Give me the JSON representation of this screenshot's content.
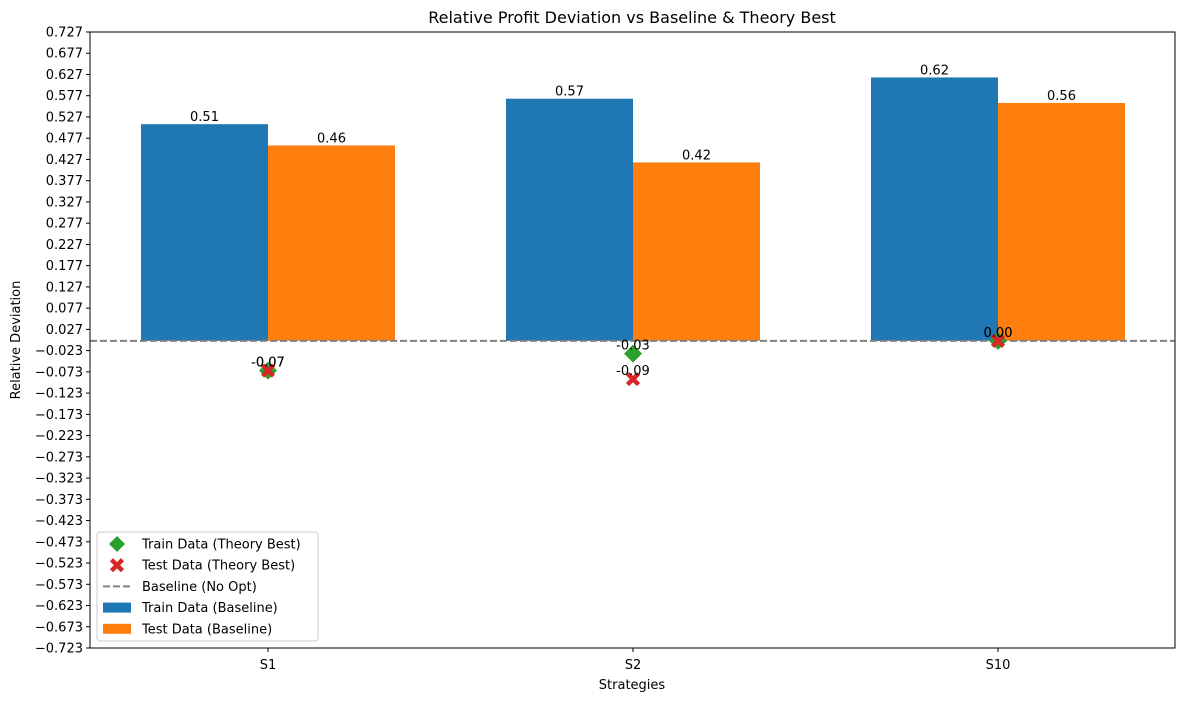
{
  "chart_data": {
    "type": "bar",
    "title": "Relative Profit Deviation vs Baseline & Theory Best",
    "xlabel": "Strategies",
    "ylabel": "Relative Deviation",
    "categories": [
      "S1",
      "S2",
      "S10"
    ],
    "ylim": [
      -0.723,
      0.727
    ],
    "yticks": [
      "0.727",
      "0.677",
      "0.627",
      "0.577",
      "0.527",
      "0.477",
      "0.427",
      "0.377",
      "0.327",
      "0.277",
      "0.227",
      "0.177",
      "0.127",
      "0.077",
      "0.027",
      "−0.023",
      "−0.073",
      "−0.123",
      "−0.173",
      "−0.223",
      "−0.273",
      "−0.323",
      "−0.373",
      "−0.423",
      "−0.473",
      "−0.523",
      "−0.573",
      "−0.623",
      "−0.673",
      "−0.723"
    ],
    "ytick_values": [
      0.727,
      0.677,
      0.627,
      0.577,
      0.527,
      0.477,
      0.427,
      0.377,
      0.327,
      0.277,
      0.227,
      0.177,
      0.127,
      0.077,
      0.027,
      -0.023,
      -0.073,
      -0.123,
      -0.173,
      -0.223,
      -0.273,
      -0.323,
      -0.373,
      -0.423,
      -0.473,
      -0.523,
      -0.573,
      -0.623,
      -0.673,
      -0.723
    ],
    "bar_series": [
      {
        "name": "Train Data (Baseline)",
        "color": "#1f77b4",
        "values": [
          0.51,
          0.57,
          0.62
        ],
        "labels": [
          "0.51",
          "0.57",
          "0.62"
        ]
      },
      {
        "name": "Test Data (Baseline)",
        "color": "#ff7f0e",
        "values": [
          0.46,
          0.42,
          0.56
        ],
        "labels": [
          "0.46",
          "0.42",
          "0.56"
        ]
      }
    ],
    "marker_series": [
      {
        "name": "Train Data (Theory Best)",
        "color": "#2ca02c",
        "marker": "diamond",
        "values": [
          -0.07,
          -0.03,
          0.0
        ],
        "labels": [
          "-0.07",
          "-0.03",
          "0.00"
        ]
      },
      {
        "name": "Test Data (Theory Best)",
        "color": "#d62728",
        "marker": "x",
        "values": [
          -0.07,
          -0.09,
          0.0
        ],
        "labels": [
          "-0.07",
          "-0.09",
          "0.00"
        ]
      }
    ],
    "baseline": {
      "name": "Baseline (No Opt)",
      "value": 0.0,
      "color": "#808080",
      "style": "dashed"
    },
    "legend": {
      "placement": "lower-left",
      "entries": [
        {
          "label": "Train Data (Theory Best)",
          "kind": "diamond",
          "color": "#2ca02c"
        },
        {
          "label": "Test Data (Theory Best)",
          "kind": "x",
          "color": "#d62728"
        },
        {
          "label": "Baseline (No Opt)",
          "kind": "dashed-line",
          "color": "#808080"
        },
        {
          "label": "Train Data (Baseline)",
          "kind": "patch",
          "color": "#1f77b4"
        },
        {
          "label": "Test Data (Baseline)",
          "kind": "patch",
          "color": "#ff7f0e"
        }
      ]
    },
    "grid": false
  }
}
